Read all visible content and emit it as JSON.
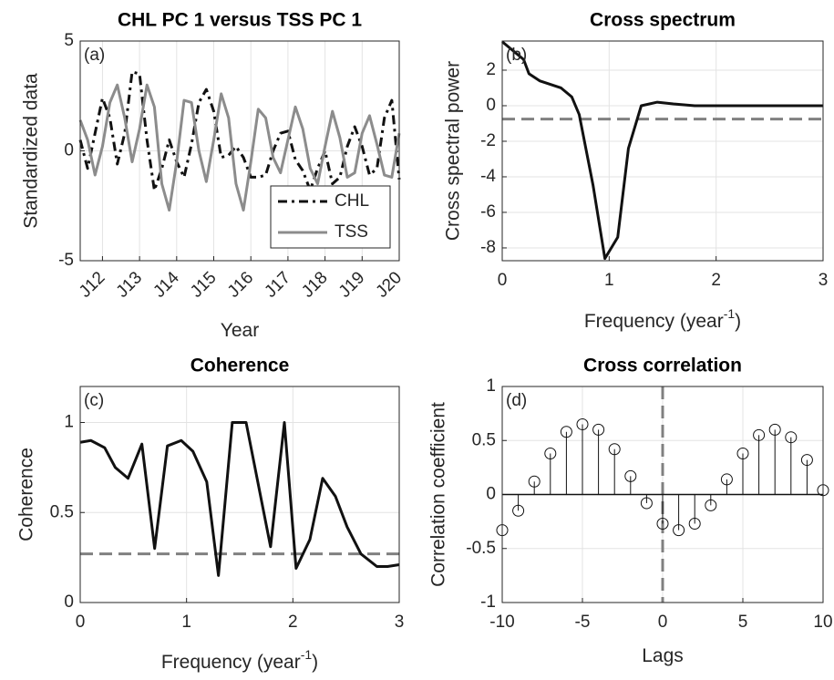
{
  "chart_data": [
    {
      "type": "line",
      "title": "CHL PC 1 versus TSS PC 1",
      "panel_label": "(a)",
      "xlabel": [
        "Year"
      ],
      "ylabel": "Standardized data",
      "x": [
        2011.4,
        2011.6,
        2011.8,
        2012.0,
        2012.2,
        2012.4,
        2012.6,
        2012.8,
        2013.0,
        2013.2,
        2013.4,
        2013.6,
        2013.8,
        2014.0,
        2014.2,
        2014.4,
        2014.6,
        2014.8,
        2015.0,
        2015.2,
        2015.4,
        2015.6,
        2015.8,
        2016.0,
        2016.2,
        2016.4,
        2016.6,
        2016.8,
        2017.0,
        2017.2,
        2017.4,
        2017.6,
        2017.8,
        2018.0,
        2018.2,
        2018.4,
        2018.6,
        2018.8,
        2019.0,
        2019.2,
        2019.4,
        2019.6,
        2019.8,
        2020.0
      ],
      "series": [
        {
          "name": "CHL",
          "color": "#111111",
          "dash": "dash-dot",
          "values": [
            0.5,
            -0.8,
            0.8,
            2.4,
            1.5,
            -0.6,
            0.8,
            3.6,
            3.5,
            0.5,
            -1.8,
            -0.8,
            0.5,
            -0.5,
            -1.2,
            0.3,
            2.2,
            2.8,
            1.8,
            -0.3,
            -0.2,
            0.2,
            -0.3,
            -1.2,
            -1.2,
            -1.1,
            0.0,
            0.8,
            0.9,
            -0.4,
            -0.9,
            -1.8,
            -0.8,
            0.0,
            -1.5,
            -1.2,
            0.2,
            1.1,
            0.2,
            -1.1,
            -0.8,
            1.5,
            2.3,
            -1.3
          ]
        },
        {
          "name": "TSS",
          "color": "#8c8c8c",
          "dash": "solid",
          "values": [
            1.4,
            0.5,
            -1.1,
            0.2,
            2.2,
            3.0,
            1.5,
            -0.5,
            1.0,
            3.0,
            2.0,
            -1.5,
            -2.7,
            -0.5,
            2.3,
            2.2,
            0.0,
            -1.4,
            0.5,
            2.6,
            1.5,
            -1.5,
            -2.7,
            -0.5,
            1.9,
            1.5,
            -0.3,
            -1.0,
            0.5,
            2.0,
            1.0,
            -0.8,
            -1.5,
            0.2,
            1.8,
            0.6,
            -1.2,
            -1.0,
            0.8,
            1.6,
            0.3,
            -1.1,
            -1.2,
            0.8
          ]
        }
      ],
      "xlim": [
        2011.4,
        2020.0
      ],
      "xticks": [
        {
          "value": 2012,
          "label": "J12"
        },
        {
          "value": 2013,
          "label": "J13"
        },
        {
          "value": 2014,
          "label": "J14"
        },
        {
          "value": 2015,
          "label": "J15"
        },
        {
          "value": 2016,
          "label": "J16"
        },
        {
          "value": 2017,
          "label": "J17"
        },
        {
          "value": 2018,
          "label": "J18"
        },
        {
          "value": 2019,
          "label": "J19"
        },
        {
          "value": 2020,
          "label": "J20"
        }
      ],
      "ylim": [
        -5,
        5
      ],
      "yticks": [
        -5,
        0,
        5
      ],
      "grid": true,
      "legend": "lower right"
    },
    {
      "type": "line",
      "title": "Cross spectrum",
      "panel_label": "(b)",
      "xlabel": [
        "Frequency (year",
        "-1",
        ")"
      ],
      "ylabel": "Cross spectral power",
      "x": [
        0,
        0.1,
        0.2,
        0.25,
        0.35,
        0.45,
        0.55,
        0.65,
        0.72,
        0.85,
        0.96,
        1.08,
        1.18,
        1.3,
        1.45,
        1.6,
        1.8,
        2,
        2.5,
        3
      ],
      "series": [
        {
          "color": "#111111",
          "dash": "solid",
          "values": [
            3.6,
            3.1,
            2.6,
            1.8,
            1.4,
            1.2,
            1.0,
            0.5,
            -0.5,
            -4.5,
            -8.6,
            -7.4,
            -2.4,
            0.0,
            0.2,
            0.1,
            0,
            0,
            0,
            0
          ]
        }
      ],
      "reference_line": {
        "axis": "y",
        "value": -0.75,
        "color": "#808080"
      },
      "xlim": [
        0,
        3
      ],
      "xticks": [
        0,
        1,
        2,
        3
      ],
      "ylim": [
        -8.72,
        3.64
      ],
      "yticks": [
        -8,
        -6,
        -4,
        -2,
        0,
        2
      ],
      "grid": true
    },
    {
      "type": "line",
      "title": "Coherence",
      "panel_label": "(c)",
      "xlabel": [
        "Frequency (year",
        "-1",
        ")"
      ],
      "ylabel": "Coherence",
      "x": [
        0,
        0.1,
        0.23,
        0.33,
        0.45,
        0.58,
        0.7,
        0.82,
        0.95,
        1.06,
        1.19,
        1.3,
        1.43,
        1.56,
        1.79,
        1.92,
        2.03,
        2.16,
        2.28,
        2.4,
        2.51,
        2.64,
        2.79,
        2.89,
        3.0
      ],
      "series": [
        {
          "color": "#111111",
          "dash": "solid",
          "values": [
            0.89,
            0.9,
            0.86,
            0.75,
            0.69,
            0.88,
            0.3,
            0.87,
            0.9,
            0.84,
            0.67,
            0.15,
            1.0,
            1.0,
            0.31,
            1.0,
            0.19,
            0.35,
            0.69,
            0.59,
            0.42,
            0.27,
            0.2,
            0.2,
            0.21
          ]
        }
      ],
      "reference_line": {
        "axis": "y",
        "value": 0.27,
        "color": "#808080"
      },
      "xlim": [
        0,
        3
      ],
      "xticks": [
        0,
        1,
        2,
        3
      ],
      "ylim": [
        0,
        1.2
      ],
      "yticks": [
        0,
        0.5,
        1
      ],
      "grid": true
    },
    {
      "type": "stem",
      "title": "Cross correlation",
      "panel_label": "(d)",
      "xlabel": [
        "Lags"
      ],
      "ylabel": "Correlation coefficient",
      "x": [
        -10,
        -9,
        -8,
        -7,
        -6,
        -5,
        -4,
        -3,
        -2,
        -1,
        0,
        1,
        2,
        3,
        4,
        5,
        6,
        7,
        8,
        9,
        10
      ],
      "values": [
        -0.33,
        -0.15,
        0.12,
        0.38,
        0.58,
        0.65,
        0.6,
        0.42,
        0.17,
        -0.08,
        -0.27,
        -0.33,
        -0.27,
        -0.1,
        0.14,
        0.38,
        0.55,
        0.6,
        0.53,
        0.32,
        0.04
      ],
      "color": "#111111",
      "reference_line": {
        "axis": "x",
        "value": 0,
        "color": "#808080"
      },
      "xlim": [
        -10,
        10
      ],
      "xticks": [
        -10,
        -5,
        0,
        5,
        10
      ],
      "ylim": [
        -1,
        1
      ],
      "yticks": [
        -1,
        -0.5,
        0,
        0.5,
        1
      ],
      "grid": true
    }
  ]
}
